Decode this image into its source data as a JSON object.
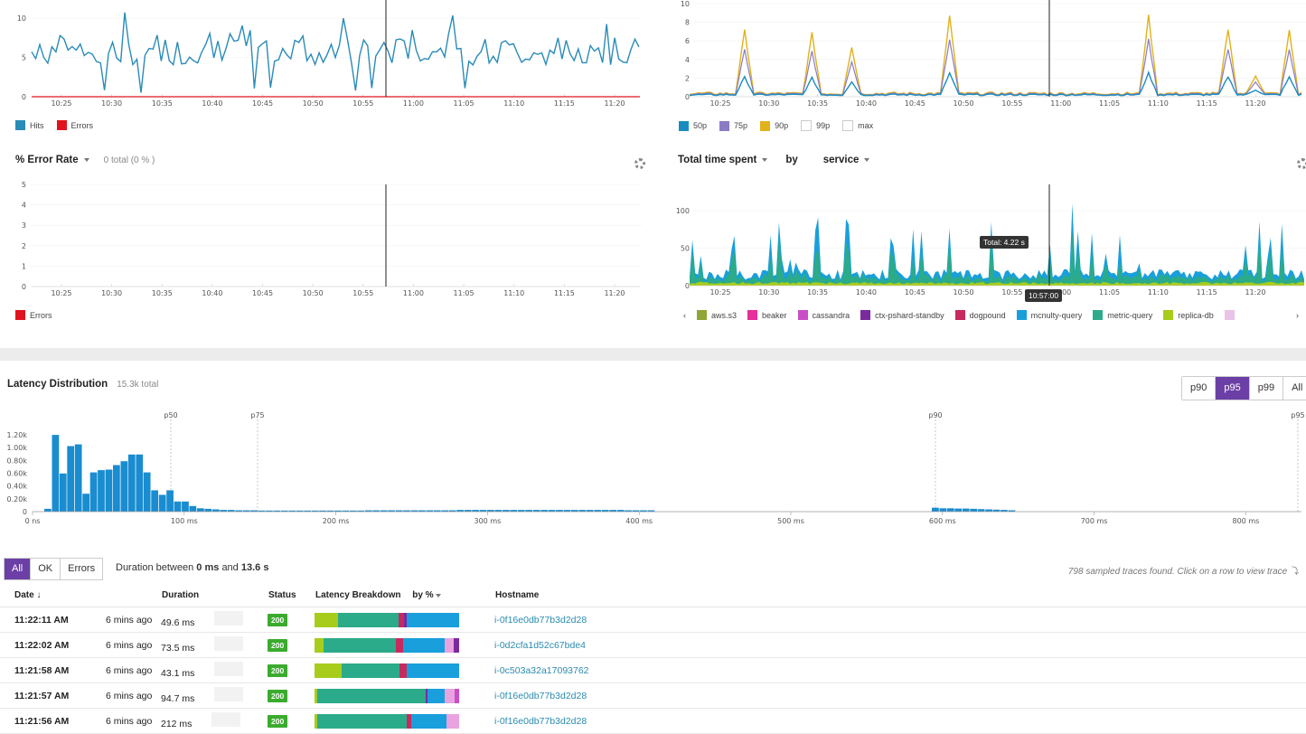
{
  "time_ticks": [
    "10:25",
    "10:30",
    "10:35",
    "10:40",
    "10:45",
    "10:50",
    "10:55",
    "11:00",
    "11:05",
    "11:10",
    "11:15",
    "11:20"
  ],
  "hits_chart": {
    "y_ticks": [
      "10",
      "5",
      "0"
    ],
    "legend": [
      {
        "label": "Hits",
        "color": "#2a8bb8"
      },
      {
        "label": "Errors",
        "color": "#e0141e"
      }
    ]
  },
  "latency_chart": {
    "y_ticks": [
      "10",
      "8",
      "6",
      "4",
      "2",
      "0"
    ],
    "legend": [
      {
        "label": "50p",
        "color": "#1a8cbf",
        "outline": false
      },
      {
        "label": "75p",
        "color": "#8a7bc4",
        "outline": false
      },
      {
        "label": "90p",
        "color": "#e0b21c",
        "outline": false
      },
      {
        "label": "99p",
        "color": "#ffffff",
        "outline": true
      },
      {
        "label": "max",
        "color": "#ffffff",
        "outline": true
      }
    ]
  },
  "error_rate": {
    "title": "% Error Rate",
    "total": "0 total (0 % )",
    "y_ticks": [
      "5",
      "4",
      "3",
      "2",
      "1",
      "0"
    ],
    "legend": [
      {
        "label": "Errors",
        "color": "#e0141e"
      }
    ]
  },
  "time_spent": {
    "title": "Total time spent",
    "by": "by",
    "group": "service",
    "y_ticks": [
      "100",
      "50",
      "0"
    ],
    "tooltip": "Total: 4.22 s",
    "cursor_time": "10:57:00",
    "legend": [
      {
        "label": "aws.s3",
        "color": "#8fa534"
      },
      {
        "label": "beaker",
        "color": "#e62f9a"
      },
      {
        "label": "cassandra",
        "color": "#c94fc7"
      },
      {
        "label": "ctx-pshard-standby",
        "color": "#7b2a9e"
      },
      {
        "label": "dogpound",
        "color": "#c72a5e"
      },
      {
        "label": "mcnulty-query",
        "color": "#199fdc"
      },
      {
        "label": "metric-query",
        "color": "#2bab8a"
      },
      {
        "label": "replica-db",
        "color": "#a8cc1c"
      },
      {
        "label": "",
        "color": "#e8c3e6"
      }
    ],
    "prev": "‹",
    "next": "›"
  },
  "latency_distribution": {
    "title": "Latency Distribution",
    "total": "15.3k total",
    "percentile_buttons": [
      {
        "label": "p90",
        "active": false
      },
      {
        "label": "p95",
        "active": true
      },
      {
        "label": "p99",
        "active": false
      },
      {
        "label": "All",
        "active": false
      }
    ],
    "y_ticks": [
      "1.20k",
      "1.00k",
      "0.80k",
      "0.60k",
      "0.40k",
      "0.20k",
      "0"
    ],
    "x_ticks": [
      "0 ns",
      "100 ms",
      "200 ms",
      "300 ms",
      "400 ms",
      "500 ms",
      "600 ms",
      "700 ms",
      "800 ms"
    ],
    "markers": [
      "p50",
      "p75",
      "p90",
      "p95"
    ]
  },
  "filters": {
    "buttons": [
      {
        "label": "All",
        "active": true
      },
      {
        "label": "OK",
        "active": false
      },
      {
        "label": "Errors",
        "active": false
      }
    ],
    "duration_prefix": "Duration between",
    "duration_min": "0 ms",
    "duration_and": "and",
    "duration_max": "13.6 s",
    "found": "798 sampled traces found. Click on a row to view trace"
  },
  "table": {
    "headers": {
      "date": "Date ↓",
      "duration": "Duration",
      "status": "Status",
      "breakdown": "Latency Breakdown",
      "by": "by %",
      "hostname": "Hostname"
    },
    "rows": [
      {
        "time": "11:22:11 AM",
        "ago": "6 mins ago",
        "duration": "49.6 ms",
        "status": "200",
        "host": "i-0f16e0db77b3d2d28",
        "breakdown": [
          {
            "c": "#a8cc1c",
            "w": 16
          },
          {
            "c": "#2bab8a",
            "w": 42
          },
          {
            "c": "#c72a5e",
            "w": 4
          },
          {
            "c": "#7b2a9e",
            "w": 2
          },
          {
            "c": "#199fdc",
            "w": 36
          }
        ]
      },
      {
        "time": "11:22:02 AM",
        "ago": "6 mins ago",
        "duration": "73.5 ms",
        "status": "200",
        "host": "i-0d2cfa1d52c67bde4",
        "breakdown": [
          {
            "c": "#a8cc1c",
            "w": 6
          },
          {
            "c": "#2bab8a",
            "w": 50
          },
          {
            "c": "#c72a5e",
            "w": 5
          },
          {
            "c": "#199fdc",
            "w": 29
          },
          {
            "c": "#e8a3e0",
            "w": 6
          },
          {
            "c": "#7b2a9e",
            "w": 4
          }
        ]
      },
      {
        "time": "11:21:58 AM",
        "ago": "6 mins ago",
        "duration": "43.1 ms",
        "status": "200",
        "host": "i-0c503a32a17093762",
        "breakdown": [
          {
            "c": "#a8cc1c",
            "w": 19
          },
          {
            "c": "#2bab8a",
            "w": 40
          },
          {
            "c": "#c72a5e",
            "w": 5
          },
          {
            "c": "#199fdc",
            "w": 36
          }
        ]
      },
      {
        "time": "11:21:57 AM",
        "ago": "6 mins ago",
        "duration": "94.7 ms",
        "status": "200",
        "host": "i-0f16e0db77b3d2d28",
        "breakdown": [
          {
            "c": "#a8cc1c",
            "w": 2
          },
          {
            "c": "#2bab8a",
            "w": 75
          },
          {
            "c": "#7b2a9e",
            "w": 1
          },
          {
            "c": "#199fdc",
            "w": 12
          },
          {
            "c": "#e8a3e0",
            "w": 7
          },
          {
            "c": "#c94fc7",
            "w": 3
          }
        ]
      },
      {
        "time": "11:21:56 AM",
        "ago": "6 mins ago",
        "duration": "212 ms",
        "status": "200",
        "host": "i-0f16e0db77b3d2d28",
        "breakdown": [
          {
            "c": "#a8cc1c",
            "w": 2
          },
          {
            "c": "#2bab8a",
            "w": 62
          },
          {
            "c": "#c72a5e",
            "w": 3
          },
          {
            "c": "#199fdc",
            "w": 24
          },
          {
            "c": "#e8a3e0",
            "w": 9
          }
        ]
      }
    ]
  }
}
